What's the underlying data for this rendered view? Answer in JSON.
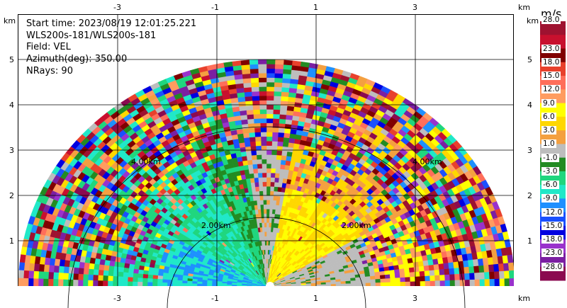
{
  "header": {
    "start_time": "Start time: 2023/08/19 12:01:25.221",
    "site": "WLS200s-181/WLS200s-181",
    "field": "Field: VEL",
    "azimuth": "Azimuth(deg): 350.00",
    "nrays": "NRays: 90"
  },
  "axes": {
    "x_unit": "km",
    "y_unit": "km",
    "x_ticks": [
      "-3",
      "-1",
      "1",
      "3"
    ],
    "y_ticks": [
      "1",
      "2",
      "3",
      "4",
      "5"
    ],
    "range_ring_labels": [
      "2.00km",
      "2.00km",
      "4.00km",
      "4.00km"
    ]
  },
  "chart_data": {
    "type": "heatmap",
    "title": "",
    "field": "VEL",
    "units": "m/s",
    "xlim": [
      -4.0,
      5.5
    ],
    "ylim": [
      0.0,
      6.0
    ],
    "range_rings_km": [
      2,
      4
    ],
    "colorbar": {
      "title": "m/s",
      "levels": [
        "28.0",
        "23.0",
        "18.0",
        "15.0",
        "12.0",
        "9.0",
        "6.0",
        "3.0",
        "1.0",
        "-1.0",
        "-3.0",
        "-6.0",
        "-9.0",
        "-12.0",
        "-15.0",
        "-18.0",
        "-23.0",
        "-28.0"
      ],
      "colors": [
        "#9e1230",
        "#c8102e",
        "#800000",
        "#e8412c",
        "#ff6e5a",
        "#ff9c60",
        "#ffff00",
        "#ffd700",
        "#f4a040",
        "#bdbdbd",
        "#228b22",
        "#1fd67e",
        "#20e8c8",
        "#1e90ff",
        "#1a50ff",
        "#0000e0",
        "#9932cc",
        "#7b1fa2",
        "#8b0a50"
      ]
    },
    "sectors": [
      {
        "from_deg": 0,
        "to_deg": 30,
        "near_value": 0.0,
        "mid_value": 9.0,
        "far_value": "noise"
      },
      {
        "from_deg": 30,
        "to_deg": 80,
        "near_value": 6.0,
        "mid_value": 3.0,
        "far_value": "noise"
      },
      {
        "from_deg": 80,
        "to_deg": 98,
        "near_value": 0.0,
        "mid_value": 0.0,
        "far_value": "noise"
      },
      {
        "from_deg": 98,
        "to_deg": 115,
        "near_value": -3.0,
        "mid_value": -3.0,
        "far_value": "noise"
      },
      {
        "from_deg": 115,
        "to_deg": 150,
        "near_value": -6.0,
        "mid_value": -6.0,
        "far_value": "noise"
      },
      {
        "from_deg": 150,
        "to_deg": 180,
        "near_value": -9.0,
        "mid_value": -6.0,
        "far_value": "noise"
      }
    ]
  }
}
